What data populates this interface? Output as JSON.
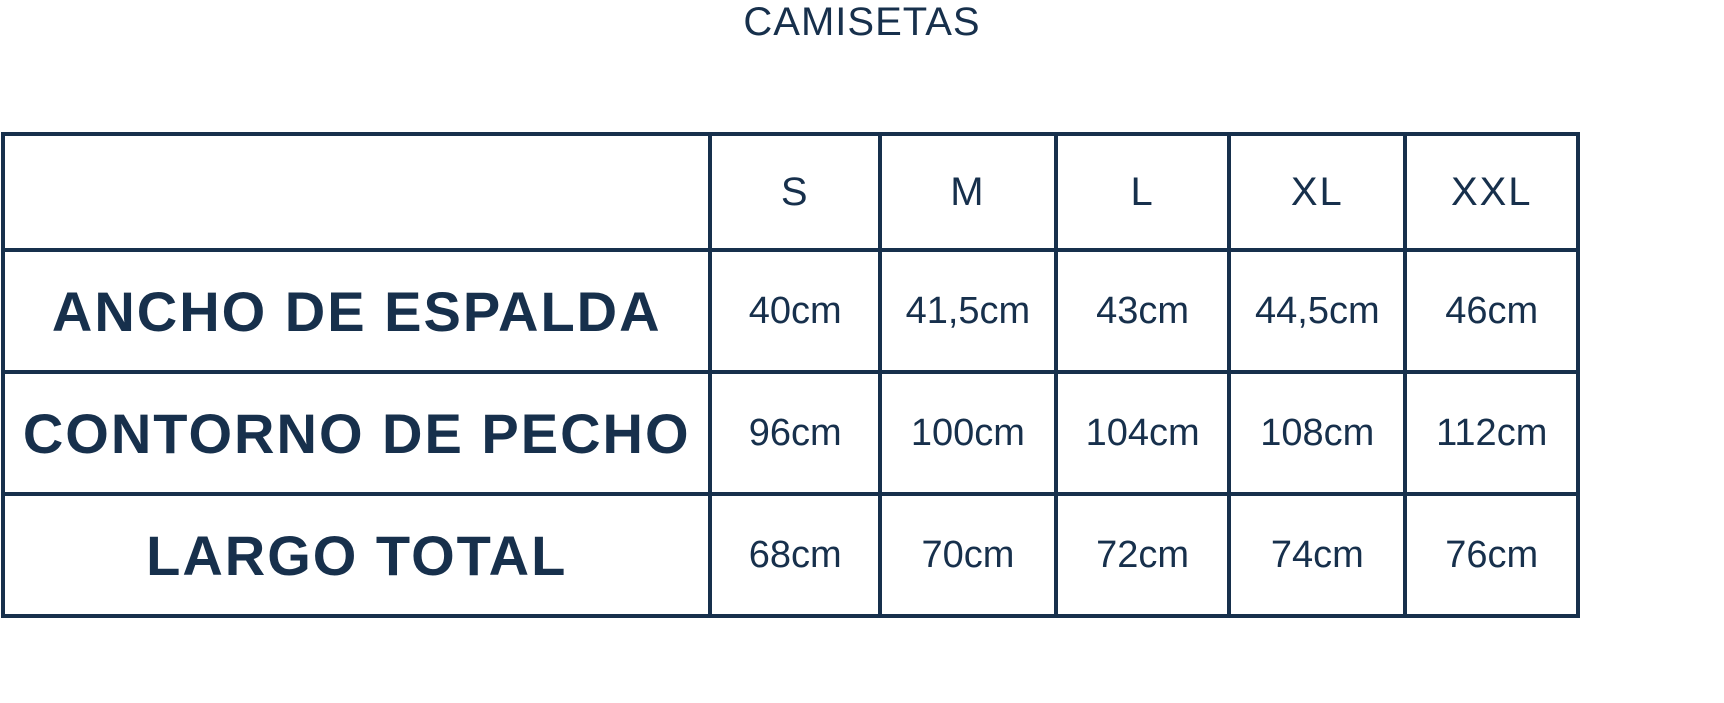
{
  "title": "CAMISETAS",
  "table": {
    "corner": "",
    "sizes": [
      "S",
      "M",
      "L",
      "XL",
      "XXL"
    ],
    "rows": [
      {
        "label": "ANCHO DE ESPALDA",
        "values": [
          "40cm",
          "41,5cm",
          "43cm",
          "44,5cm",
          "46cm"
        ]
      },
      {
        "label": "CONTORNO DE PECHO",
        "values": [
          "96cm",
          "100cm",
          "104cm",
          "108cm",
          "112cm"
        ]
      },
      {
        "label": "LARGO TOTAL",
        "values": [
          "68cm",
          "70cm",
          "72cm",
          "74cm",
          "76cm"
        ]
      }
    ]
  },
  "colors": {
    "text": "#17304c",
    "border": "#17304c",
    "background": "#ffffff"
  }
}
